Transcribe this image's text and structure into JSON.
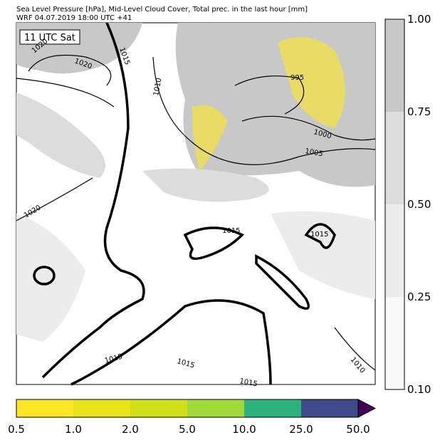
{
  "header": {
    "title_line_1": "Sea Level Pressure [hPa], Mid-Level Cloud Cover, Total prec. in the last hour [mm]",
    "title_line_2": "WRF 04.07.2019 18:00 UTC +41"
  },
  "map": {
    "time_label": "11 UTC Sat",
    "isobar_labels": [
      "1020",
      "1020",
      "1015",
      "1010",
      "995",
      "1000",
      "1005",
      "1020",
      "1015",
      "1015",
      "1015",
      "1015",
      "1015",
      "1010"
    ]
  },
  "cloud_colorbar": {
    "ticks": [
      "1.00",
      "0.75",
      "0.50",
      "0.25",
      "0.10"
    ]
  },
  "precip_colorbar": {
    "ticks": [
      "0.5",
      "1.0",
      "2.0",
      "5.0",
      "10.0",
      "25.0",
      "50.0"
    ]
  }
}
